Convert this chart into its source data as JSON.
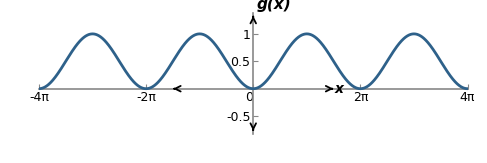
{
  "title": "g(x)",
  "xlabel": "x",
  "xlim_data": [
    -4.7,
    4.7
  ],
  "ylim_data": [
    -0.82,
    1.38
  ],
  "x_ticks_pi": [
    -4,
    -2,
    0,
    2,
    4
  ],
  "x_tick_labels": [
    "-4π",
    "-2π",
    "0",
    "2π",
    "4π"
  ],
  "y_ticks": [
    -0.5,
    0.5,
    1
  ],
  "y_tick_labels": [
    "-0.5",
    "0.5",
    "1"
  ],
  "line_color": "#2E618A",
  "line_width": 2.0,
  "background_color": "#ffffff",
  "arrow_color": "#000000",
  "axis_color": "#888888",
  "title_fontsize": 11,
  "tick_fontsize": 9,
  "axis_lw": 1.2
}
